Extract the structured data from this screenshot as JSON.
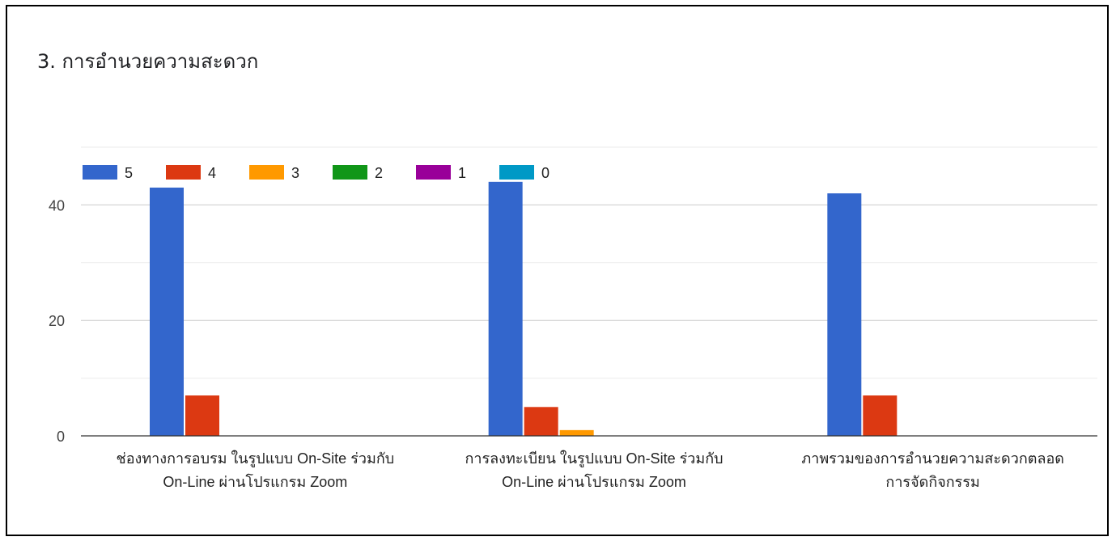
{
  "title": "3. การอำนวยความสะดวก",
  "colors": [
    "#3366cc",
    "#dc3912",
    "#ff9900",
    "#109618",
    "#990099",
    "#0099c6"
  ],
  "chart_data": {
    "type": "bar",
    "title": "3. การอำนวยความสะดวก",
    "categories": [
      [
        "ช่องทางการอบรม ในรูปแบบ On-Site ร่วมกับ",
        "On-Line ผ่านโปรแกรม Zoom"
      ],
      [
        "การลงทะเบียน ในรูปแบบ On-Site ร่วมกับ",
        "On-Line ผ่านโปรแกรม Zoom"
      ],
      [
        "ภาพรวมของการอำนวยความสะดวกตลอด",
        "การจัดกิจกรรม"
      ]
    ],
    "series": [
      {
        "name": "5",
        "values": [
          43,
          44,
          42
        ]
      },
      {
        "name": "4",
        "values": [
          7,
          5,
          7
        ]
      },
      {
        "name": "3",
        "values": [
          0,
          1,
          0
        ]
      },
      {
        "name": "2",
        "values": [
          0,
          0,
          0
        ]
      },
      {
        "name": "1",
        "values": [
          0,
          0,
          0
        ]
      },
      {
        "name": "0",
        "values": [
          0,
          0,
          0
        ]
      }
    ],
    "yticks": [
      "0",
      "20",
      "40"
    ],
    "ylim": [
      0,
      50
    ],
    "legend_position": "top-left",
    "grid": true
  }
}
